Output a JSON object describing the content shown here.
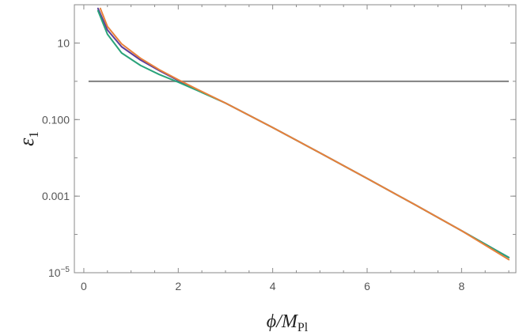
{
  "chart_data": {
    "type": "line",
    "title": "",
    "xlabel": "ϕ/M_Pl",
    "ylabel": "ε_1",
    "xlim": [
      -0.2,
      9.15
    ],
    "ylim": [
      1e-05,
      100
    ],
    "y_scale": "log",
    "grid": false,
    "x_ticks": [
      0,
      2,
      4,
      6,
      8
    ],
    "x_tick_labels": [
      "0",
      "2",
      "4",
      "6",
      "8"
    ],
    "y_ticks": [
      10,
      0.1,
      0.001,
      1e-05
    ],
    "y_tick_labels": [
      "10",
      "0.100",
      "0.001",
      "10^-5"
    ],
    "hline": {
      "y": 1,
      "x_range": [
        0.1,
        9.0
      ],
      "color": "#808080"
    },
    "colors": {
      "purple": "#5e3c99",
      "green": "#2aa37a",
      "orange": "#e8803a",
      "gray": "#808080"
    },
    "series": [
      {
        "color": "#5e3c99",
        "x": [
          0.3,
          0.5,
          0.8,
          1.2,
          1.6,
          2.0,
          2.4,
          3,
          4,
          5,
          6,
          7,
          8,
          9
        ],
        "y": [
          80,
          22,
          8.0,
          3.6,
          1.9,
          1.05,
          0.6,
          0.27,
          0.062,
          0.0135,
          0.0029,
          0.00061,
          0.000125,
          2.5e-05
        ]
      },
      {
        "color": "#2aa37a",
        "x": [
          0.3,
          0.5,
          0.8,
          1.2,
          1.6,
          2.0,
          2.4,
          3,
          4,
          5,
          6,
          7,
          8,
          9
        ],
        "y": [
          70,
          17,
          5.5,
          2.6,
          1.5,
          0.95,
          0.58,
          0.27,
          0.062,
          0.0135,
          0.0029,
          0.00061,
          0.000125,
          2.5e-05
        ]
      },
      {
        "color": "#e8803a",
        "x": [
          0.35,
          0.5,
          0.8,
          1.2,
          1.6,
          2.0,
          2.4,
          3,
          4,
          5,
          6,
          7,
          8,
          9
        ],
        "y": [
          80,
          27,
          9.5,
          4.0,
          2.0,
          1.1,
          0.62,
          0.27,
          0.062,
          0.0135,
          0.0029,
          0.00061,
          0.000125,
          2.2e-05
        ]
      }
    ]
  }
}
